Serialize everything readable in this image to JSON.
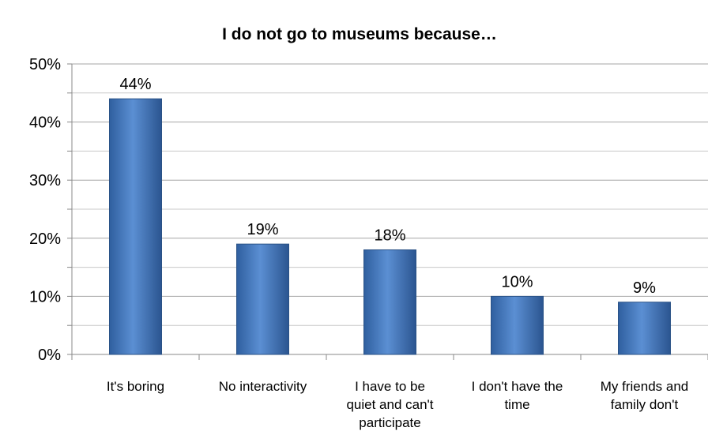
{
  "chart_data": {
    "type": "bar",
    "title": "I do not go to museums because…",
    "xlabel": "",
    "ylabel": "",
    "categories": [
      [
        "It's boring"
      ],
      [
        "No interactivity"
      ],
      [
        "I have to be",
        "quiet and can't",
        "participate"
      ],
      [
        "I don't have the",
        "time"
      ],
      [
        "My friends and",
        "family don't"
      ]
    ],
    "values": [
      44,
      19,
      18,
      10,
      9
    ],
    "data_labels": [
      "44%",
      "19%",
      "18%",
      "10%",
      "9%"
    ],
    "ylim": [
      0,
      50
    ],
    "yticks": [
      "0%",
      "10%",
      "20%",
      "30%",
      "40%",
      "50%"
    ],
    "grid": true,
    "legend": "none",
    "bar_color": "#4a7ebf"
  }
}
